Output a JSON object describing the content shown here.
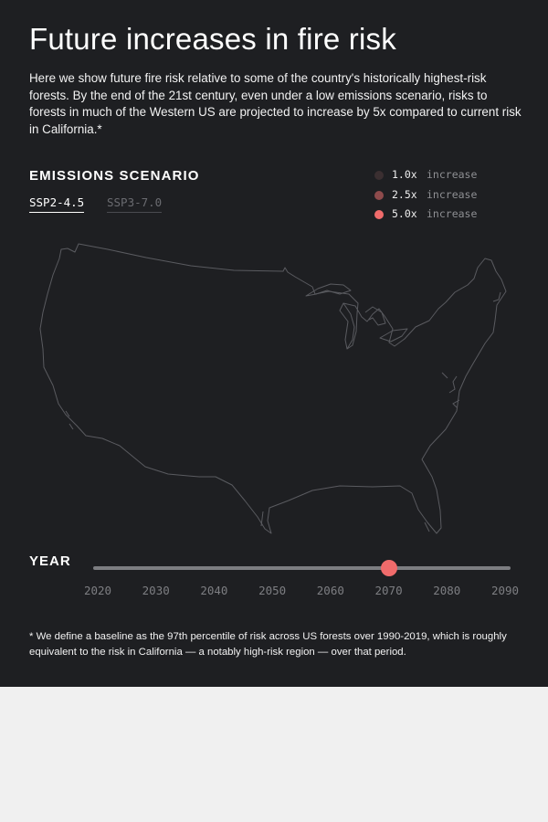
{
  "title": "Future increases in fire risk",
  "intro": "Here we show future fire risk relative to some of the country's historically highest-risk forests. By the end of the 21st century, even under a low emissions scenario, risks to forests in much of the Western US are projected to increase by 5x compared to current risk in California.*",
  "scenario": {
    "heading": "EMISSIONS SCENARIO",
    "tabs": [
      {
        "label": "SSP2-4.5",
        "selected": true
      },
      {
        "label": "SSP3-7.0",
        "selected": false
      }
    ]
  },
  "legend": [
    {
      "multiplier": "1.0x",
      "word": "increase",
      "color": "#3b2f31"
    },
    {
      "multiplier": "2.5x",
      "word": "increase",
      "color": "#8e4b4c"
    },
    {
      "multiplier": "5.0x",
      "word": "increase",
      "color": "#f06b6b"
    }
  ],
  "map": {
    "icon": "us-outline-map",
    "outline_color": "#5a5b60"
  },
  "year": {
    "label": "YEAR",
    "ticks": [
      "2020",
      "2030",
      "2040",
      "2050",
      "2060",
      "2070",
      "2080",
      "2090"
    ],
    "min": 2020,
    "max": 2090,
    "value": 2070,
    "thumb_color": "#f06b6b"
  },
  "footnote": "* We define a baseline as the 97th percentile of risk across US forests over 1990-2019, which is roughly equivalent to the risk in California — a notably high-risk region — over that period."
}
